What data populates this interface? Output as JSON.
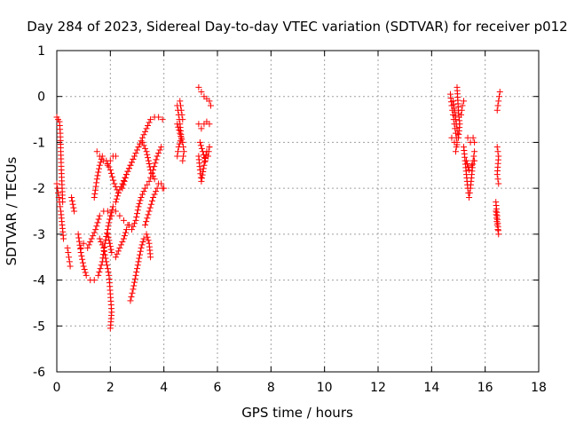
{
  "chart_data": {
    "type": "scatter",
    "title": "Day 284 of 2023, Sidereal Day-to-day VTEC variation (SDTVAR) for receiver p012",
    "xlabel": "GPS time / hours",
    "ylabel": "SDTVAR / TECUs",
    "xlim": [
      0,
      18
    ],
    "ylim": [
      -6,
      1
    ],
    "xticks": [
      0,
      2,
      4,
      6,
      8,
      10,
      12,
      14,
      16,
      18
    ],
    "yticks": [
      1,
      0,
      -1,
      -2,
      -3,
      -4,
      -5,
      -6
    ],
    "grid": true,
    "marker": "+",
    "color": "#ff0000",
    "series": [
      {
        "name": "p012",
        "segments": [
          [
            [
              0.0,
              -0.45
            ],
            [
              0.05,
              -0.5
            ],
            [
              0.1,
              -0.55
            ],
            [
              0.13,
              -0.8
            ],
            [
              0.15,
              -1.2
            ],
            [
              0.17,
              -1.6
            ],
            [
              0.2,
              -2.0
            ],
            [
              0.22,
              -2.3
            ]
          ],
          [
            [
              0.0,
              -1.9
            ],
            [
              0.05,
              -2.1
            ],
            [
              0.1,
              -2.3
            ],
            [
              0.15,
              -2.5
            ],
            [
              0.2,
              -2.8
            ],
            [
              0.25,
              -3.1
            ]
          ],
          [
            [
              0.4,
              -3.3
            ],
            [
              0.45,
              -3.5
            ],
            [
              0.5,
              -3.7
            ]
          ],
          [
            [
              0.55,
              -2.2
            ],
            [
              0.6,
              -2.35
            ],
            [
              0.65,
              -2.5
            ]
          ],
          [
            [
              0.8,
              -3.0
            ],
            [
              0.9,
              -3.4
            ],
            [
              1.0,
              -3.7
            ],
            [
              1.1,
              -3.9
            ],
            [
              1.25,
              -4.0
            ],
            [
              1.4,
              -4.0
            ],
            [
              1.55,
              -3.9
            ],
            [
              1.7,
              -3.6
            ],
            [
              1.8,
              -3.2
            ],
            [
              1.9,
              -2.9
            ],
            [
              2.0,
              -2.6
            ],
            [
              2.1,
              -2.4
            ],
            [
              2.2,
              -2.3
            ],
            [
              2.3,
              -2.1
            ],
            [
              2.45,
              -1.9
            ],
            [
              2.6,
              -1.7
            ],
            [
              2.75,
              -1.5
            ],
            [
              2.9,
              -1.3
            ],
            [
              3.05,
              -1.1
            ],
            [
              3.2,
              -0.9
            ],
            [
              3.35,
              -0.7
            ],
            [
              3.5,
              -0.5
            ],
            [
              3.65,
              -0.45
            ],
            [
              3.8,
              -0.45
            ],
            [
              3.95,
              -0.5
            ]
          ],
          [
            [
              0.9,
              -3.3
            ],
            [
              1.0,
              -3.2
            ],
            [
              1.15,
              -3.3
            ],
            [
              1.3,
              -3.1
            ],
            [
              1.45,
              -2.9
            ],
            [
              1.6,
              -2.6
            ],
            [
              1.75,
              -2.5
            ],
            [
              1.9,
              -2.5
            ],
            [
              2.05,
              -2.6
            ],
            [
              2.2,
              -2.5
            ],
            [
              2.35,
              -2.6
            ],
            [
              2.5,
              -2.7
            ],
            [
              2.65,
              -2.8
            ],
            [
              2.8,
              -2.9
            ],
            [
              2.95,
              -2.7
            ],
            [
              3.05,
              -2.4
            ],
            [
              3.15,
              -2.2
            ],
            [
              3.3,
              -2.0
            ],
            [
              3.45,
              -1.85
            ],
            [
              3.6,
              -1.6
            ],
            [
              3.75,
              -1.3
            ],
            [
              3.9,
              -1.1
            ]
          ],
          [
            [
              1.4,
              -2.2
            ],
            [
              1.5,
              -1.8
            ],
            [
              1.6,
              -1.5
            ],
            [
              1.7,
              -1.3
            ],
            [
              1.85,
              -1.4
            ],
            [
              2.0,
              -1.6
            ],
            [
              2.15,
              -1.9
            ],
            [
              2.3,
              -2.1
            ],
            [
              2.45,
              -2.0
            ],
            [
              2.6,
              -1.7
            ],
            [
              2.75,
              -1.5
            ],
            [
              2.9,
              -1.3
            ],
            [
              3.05,
              -1.1
            ],
            [
              3.2,
              -1.0
            ],
            [
              3.35,
              -1.2
            ],
            [
              3.5,
              -1.6
            ],
            [
              3.65,
              -1.8
            ],
            [
              3.8,
              -1.9
            ],
            [
              3.95,
              -2.0
            ]
          ],
          [
            [
              1.5,
              -1.2
            ],
            [
              1.6,
              -1.3
            ],
            [
              1.75,
              -1.4
            ],
            [
              1.9,
              -1.5
            ],
            [
              2.0,
              -1.4
            ],
            [
              2.1,
              -1.3
            ],
            [
              2.2,
              -1.3
            ]
          ],
          [
            [
              1.6,
              -3.1
            ],
            [
              1.75,
              -3.3
            ],
            [
              1.85,
              -3.6
            ],
            [
              1.95,
              -3.9
            ],
            [
              2.0,
              -4.3
            ],
            [
              2.05,
              -4.7
            ],
            [
              2.0,
              -5.05
            ]
          ],
          [
            [
              1.9,
              -3.0
            ],
            [
              2.05,
              -3.4
            ],
            [
              2.2,
              -3.5
            ],
            [
              2.35,
              -3.3
            ],
            [
              2.5,
              -3.1
            ],
            [
              2.6,
              -2.9
            ],
            [
              2.7,
              -2.8
            ]
          ],
          [
            [
              2.75,
              -4.45
            ],
            [
              2.85,
              -4.2
            ],
            [
              2.95,
              -3.9
            ],
            [
              3.05,
              -3.6
            ],
            [
              3.15,
              -3.3
            ],
            [
              3.25,
              -3.1
            ],
            [
              3.35,
              -3.0
            ],
            [
              3.45,
              -3.2
            ],
            [
              3.5,
              -3.5
            ]
          ],
          [
            [
              3.3,
              -2.8
            ],
            [
              3.45,
              -2.5
            ],
            [
              3.6,
              -2.2
            ],
            [
              3.75,
              -2.0
            ],
            [
              3.9,
              -1.9
            ],
            [
              4.0,
              -2.0
            ]
          ],
          [
            [
              4.5,
              -0.2
            ],
            [
              4.55,
              -0.4
            ],
            [
              4.6,
              -0.6
            ],
            [
              4.65,
              -0.9
            ],
            [
              4.55,
              -1.1
            ],
            [
              4.5,
              -1.3
            ]
          ],
          [
            [
              4.5,
              -0.6
            ],
            [
              4.6,
              -0.8
            ],
            [
              4.7,
              -1.0
            ],
            [
              4.75,
              -1.2
            ],
            [
              4.7,
              -1.4
            ]
          ],
          [
            [
              4.6,
              -0.1
            ],
            [
              4.65,
              -0.3
            ],
            [
              4.7,
              -0.5
            ]
          ],
          [
            [
              5.3,
              0.2
            ],
            [
              5.4,
              0.1
            ],
            [
              5.5,
              0.0
            ],
            [
              5.6,
              -0.05
            ],
            [
              5.7,
              -0.1
            ],
            [
              5.75,
              -0.2
            ]
          ],
          [
            [
              5.3,
              -0.6
            ],
            [
              5.4,
              -0.7
            ],
            [
              5.5,
              -0.6
            ],
            [
              5.6,
              -0.55
            ],
            [
              5.7,
              -0.6
            ]
          ],
          [
            [
              5.3,
              -1.3
            ],
            [
              5.35,
              -1.6
            ],
            [
              5.4,
              -1.85
            ],
            [
              5.5,
              -1.5
            ],
            [
              5.6,
              -1.2
            ],
            [
              5.7,
              -1.1
            ]
          ],
          [
            [
              5.35,
              -1.0
            ],
            [
              5.45,
              -1.2
            ],
            [
              5.55,
              -1.4
            ],
            [
              5.65,
              -1.3
            ],
            [
              5.7,
              -1.1
            ]
          ],
          [
            [
              14.7,
              0.05
            ],
            [
              14.75,
              -0.2
            ],
            [
              14.8,
              -0.4
            ],
            [
              14.85,
              -0.6
            ],
            [
              14.9,
              -0.8
            ],
            [
              14.95,
              -1.0
            ],
            [
              14.9,
              -1.2
            ]
          ],
          [
            [
              14.8,
              -0.1
            ],
            [
              14.9,
              -0.5
            ],
            [
              14.95,
              -0.7
            ],
            [
              15.0,
              -0.9
            ],
            [
              15.05,
              -0.6
            ],
            [
              15.0,
              -0.3
            ],
            [
              14.95,
              0.2
            ]
          ],
          [
            [
              14.75,
              -0.9
            ],
            [
              14.85,
              -1.0
            ],
            [
              14.95,
              -1.05
            ]
          ],
          [
            [
              15.1,
              -0.4
            ],
            [
              15.15,
              -0.2
            ],
            [
              15.2,
              -0.1
            ]
          ],
          [
            [
              15.2,
              -1.1
            ],
            [
              15.25,
              -1.4
            ],
            [
              15.3,
              -1.7
            ],
            [
              15.35,
              -2.0
            ],
            [
              15.4,
              -2.2
            ],
            [
              15.45,
              -2.0
            ],
            [
              15.5,
              -1.7
            ],
            [
              15.55,
              -1.4
            ],
            [
              15.6,
              -1.2
            ]
          ],
          [
            [
              15.35,
              -0.9
            ],
            [
              15.45,
              -1.0
            ],
            [
              15.55,
              -0.9
            ],
            [
              15.6,
              -1.0
            ]
          ],
          [
            [
              15.3,
              -1.4
            ],
            [
              15.4,
              -1.6
            ],
            [
              15.5,
              -1.5
            ],
            [
              15.6,
              -1.4
            ]
          ],
          [
            [
              16.4,
              -2.5
            ],
            [
              16.45,
              -2.8
            ],
            [
              16.5,
              -3.0
            ],
            [
              16.45,
              -2.6
            ],
            [
              16.4,
              -2.3
            ]
          ],
          [
            [
              16.45,
              -1.1
            ],
            [
              16.5,
              -1.3
            ],
            [
              16.45,
              -1.7
            ],
            [
              16.5,
              -1.9
            ]
          ],
          [
            [
              16.45,
              -0.3
            ],
            [
              16.5,
              -0.1
            ],
            [
              16.55,
              0.1
            ]
          ]
        ]
      }
    ]
  }
}
